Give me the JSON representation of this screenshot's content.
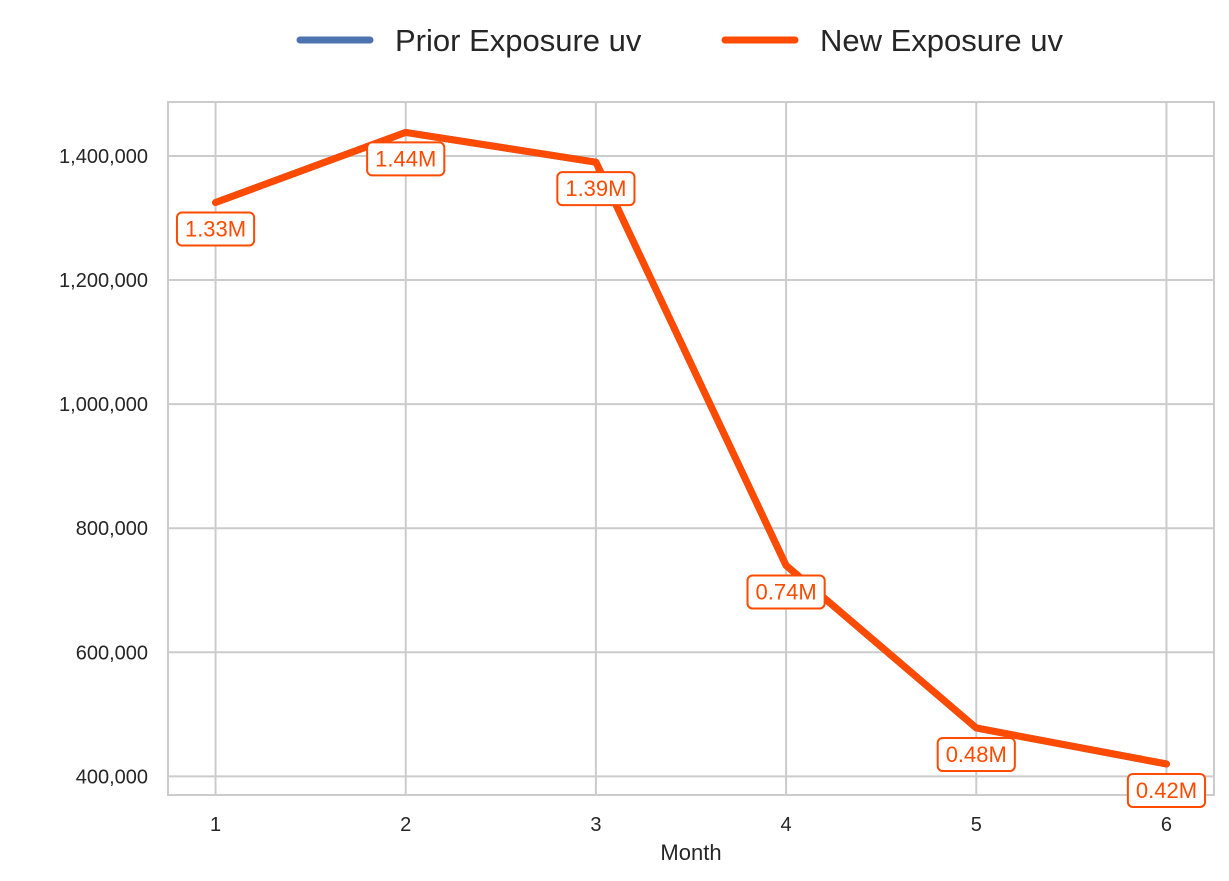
{
  "chart_data": {
    "type": "line",
    "title": "",
    "xlabel": "Month",
    "ylabel": "",
    "x": [
      1,
      2,
      3,
      4,
      5,
      6
    ],
    "x_tick_labels": [
      "1",
      "2",
      "3",
      "4",
      "5",
      "6"
    ],
    "y_ticks": [
      400000,
      600000,
      800000,
      1000000,
      1200000,
      1400000
    ],
    "y_tick_labels": [
      "400,000",
      "600,000",
      "800,000",
      "1,000,000",
      "1,200,000",
      "1,400,000"
    ],
    "xlim": [
      0.75,
      6.25
    ],
    "ylim": [
      370000,
      1487000
    ],
    "grid": true,
    "legend_position": "top-center, outside plot",
    "series": [
      {
        "name": "Prior Exposure uv",
        "color": "#4c72b0",
        "values": [
          1325000,
          1438000,
          1390000,
          740000,
          478000,
          420000
        ],
        "hidden_behind": "New Exposure uv"
      },
      {
        "name": "New Exposure uv",
        "color": "#ff4b00",
        "values": [
          1325000,
          1438000,
          1390000,
          740000,
          478000,
          420000
        ],
        "data_labels": [
          "1.33M",
          "1.44M",
          "1.39M",
          "0.74M",
          "0.48M",
          "0.42M"
        ]
      }
    ]
  }
}
